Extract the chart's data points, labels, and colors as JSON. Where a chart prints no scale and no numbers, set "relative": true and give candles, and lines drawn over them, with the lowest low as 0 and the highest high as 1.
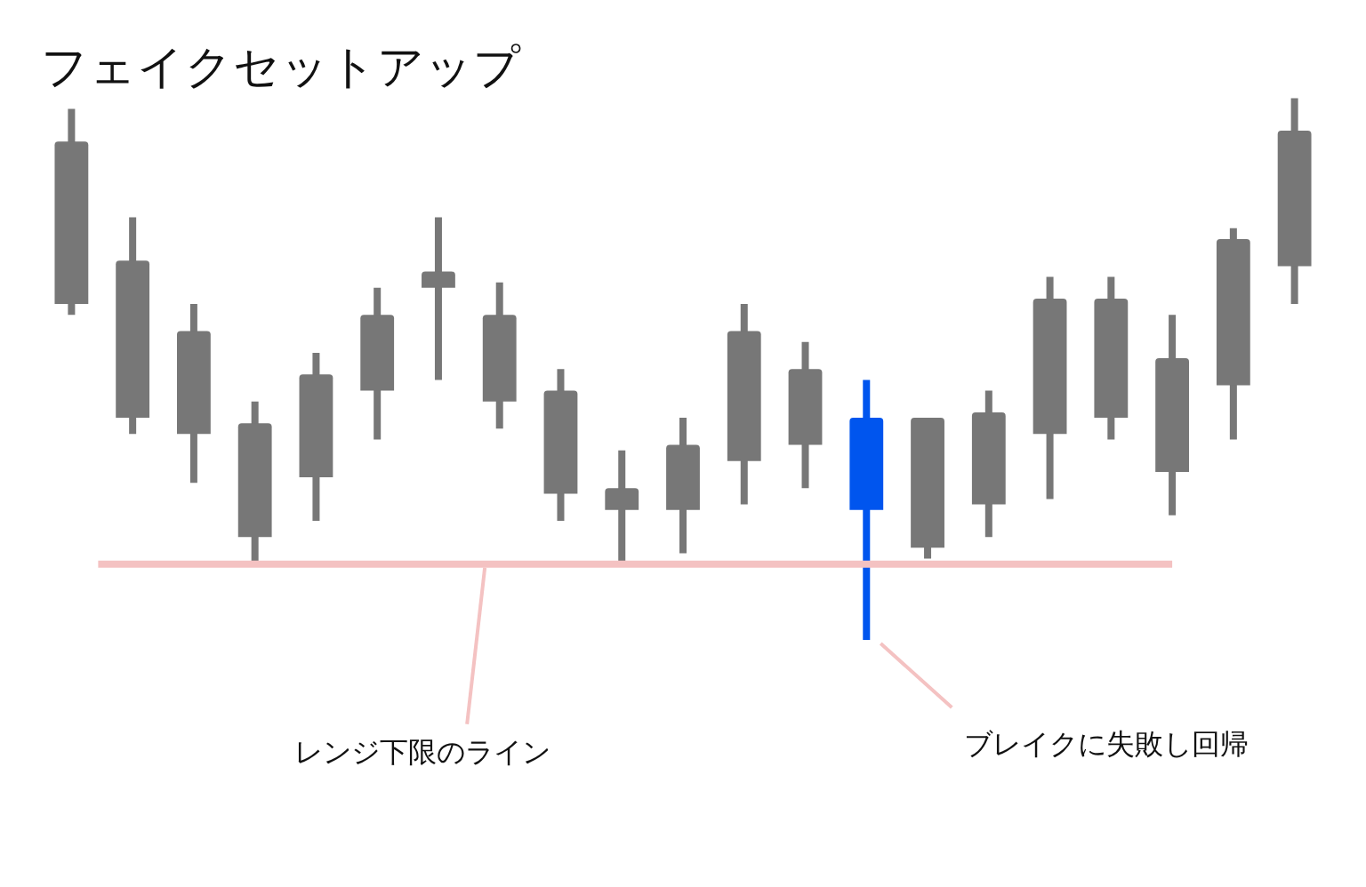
{
  "chart_data": {
    "type": "candlestick",
    "title": "フェイクセットアップ",
    "relative": true,
    "categories": [
      null,
      null,
      null,
      null,
      null,
      null,
      null,
      null,
      null,
      null,
      null,
      null,
      null,
      null,
      null,
      null,
      null,
      null,
      null,
      null,
      null
    ],
    "ohlc": [
      [
        0.62,
        0.98,
        0.6,
        0.92
      ],
      [
        0.41,
        0.78,
        0.38,
        0.7
      ],
      [
        0.38,
        0.62,
        0.29,
        0.57
      ],
      [
        0.19,
        0.44,
        0.14,
        0.4
      ],
      [
        0.3,
        0.53,
        0.22,
        0.49
      ],
      [
        0.46,
        0.65,
        0.37,
        0.6
      ],
      [
        0.65,
        0.78,
        0.48,
        0.68
      ],
      [
        0.44,
        0.66,
        0.39,
        0.6
      ],
      [
        0.27,
        0.5,
        0.22,
        0.46
      ],
      [
        0.24,
        0.35,
        0.14,
        0.28
      ],
      [
        0.24,
        0.41,
        0.16,
        0.36
      ],
      [
        0.33,
        0.62,
        0.25,
        0.57
      ],
      [
        0.36,
        0.55,
        0.28,
        0.5
      ],
      [
        0.41,
        0.48,
        0.0,
        0.24
      ],
      [
        0.17,
        0.41,
        0.15,
        0.41
      ],
      [
        0.25,
        0.46,
        0.19,
        0.42
      ],
      [
        0.38,
        0.67,
        0.26,
        0.63
      ],
      [
        0.41,
        0.67,
        0.37,
        0.63
      ],
      [
        0.31,
        0.6,
        0.23,
        0.52
      ],
      [
        0.47,
        0.76,
        0.37,
        0.74
      ],
      [
        0.69,
        1.0,
        0.62,
        0.94
      ]
    ],
    "colors": [
      "#777777",
      "#777777",
      "#777777",
      "#777777",
      "#777777",
      "#777777",
      "#777777",
      "#777777",
      "#777777",
      "#777777",
      "#777777",
      "#777777",
      "#777777",
      "#0055ee",
      "#777777",
      "#777777",
      "#777777",
      "#777777",
      "#777777",
      "#777777",
      "#777777"
    ],
    "ref_lines": [
      {
        "axis": "y",
        "value": 0.14,
        "label": "レンジ下限のライン",
        "color": "#f4c2c2"
      }
    ],
    "annotations": [
      "ブレイクに失敗し回帰"
    ]
  }
}
